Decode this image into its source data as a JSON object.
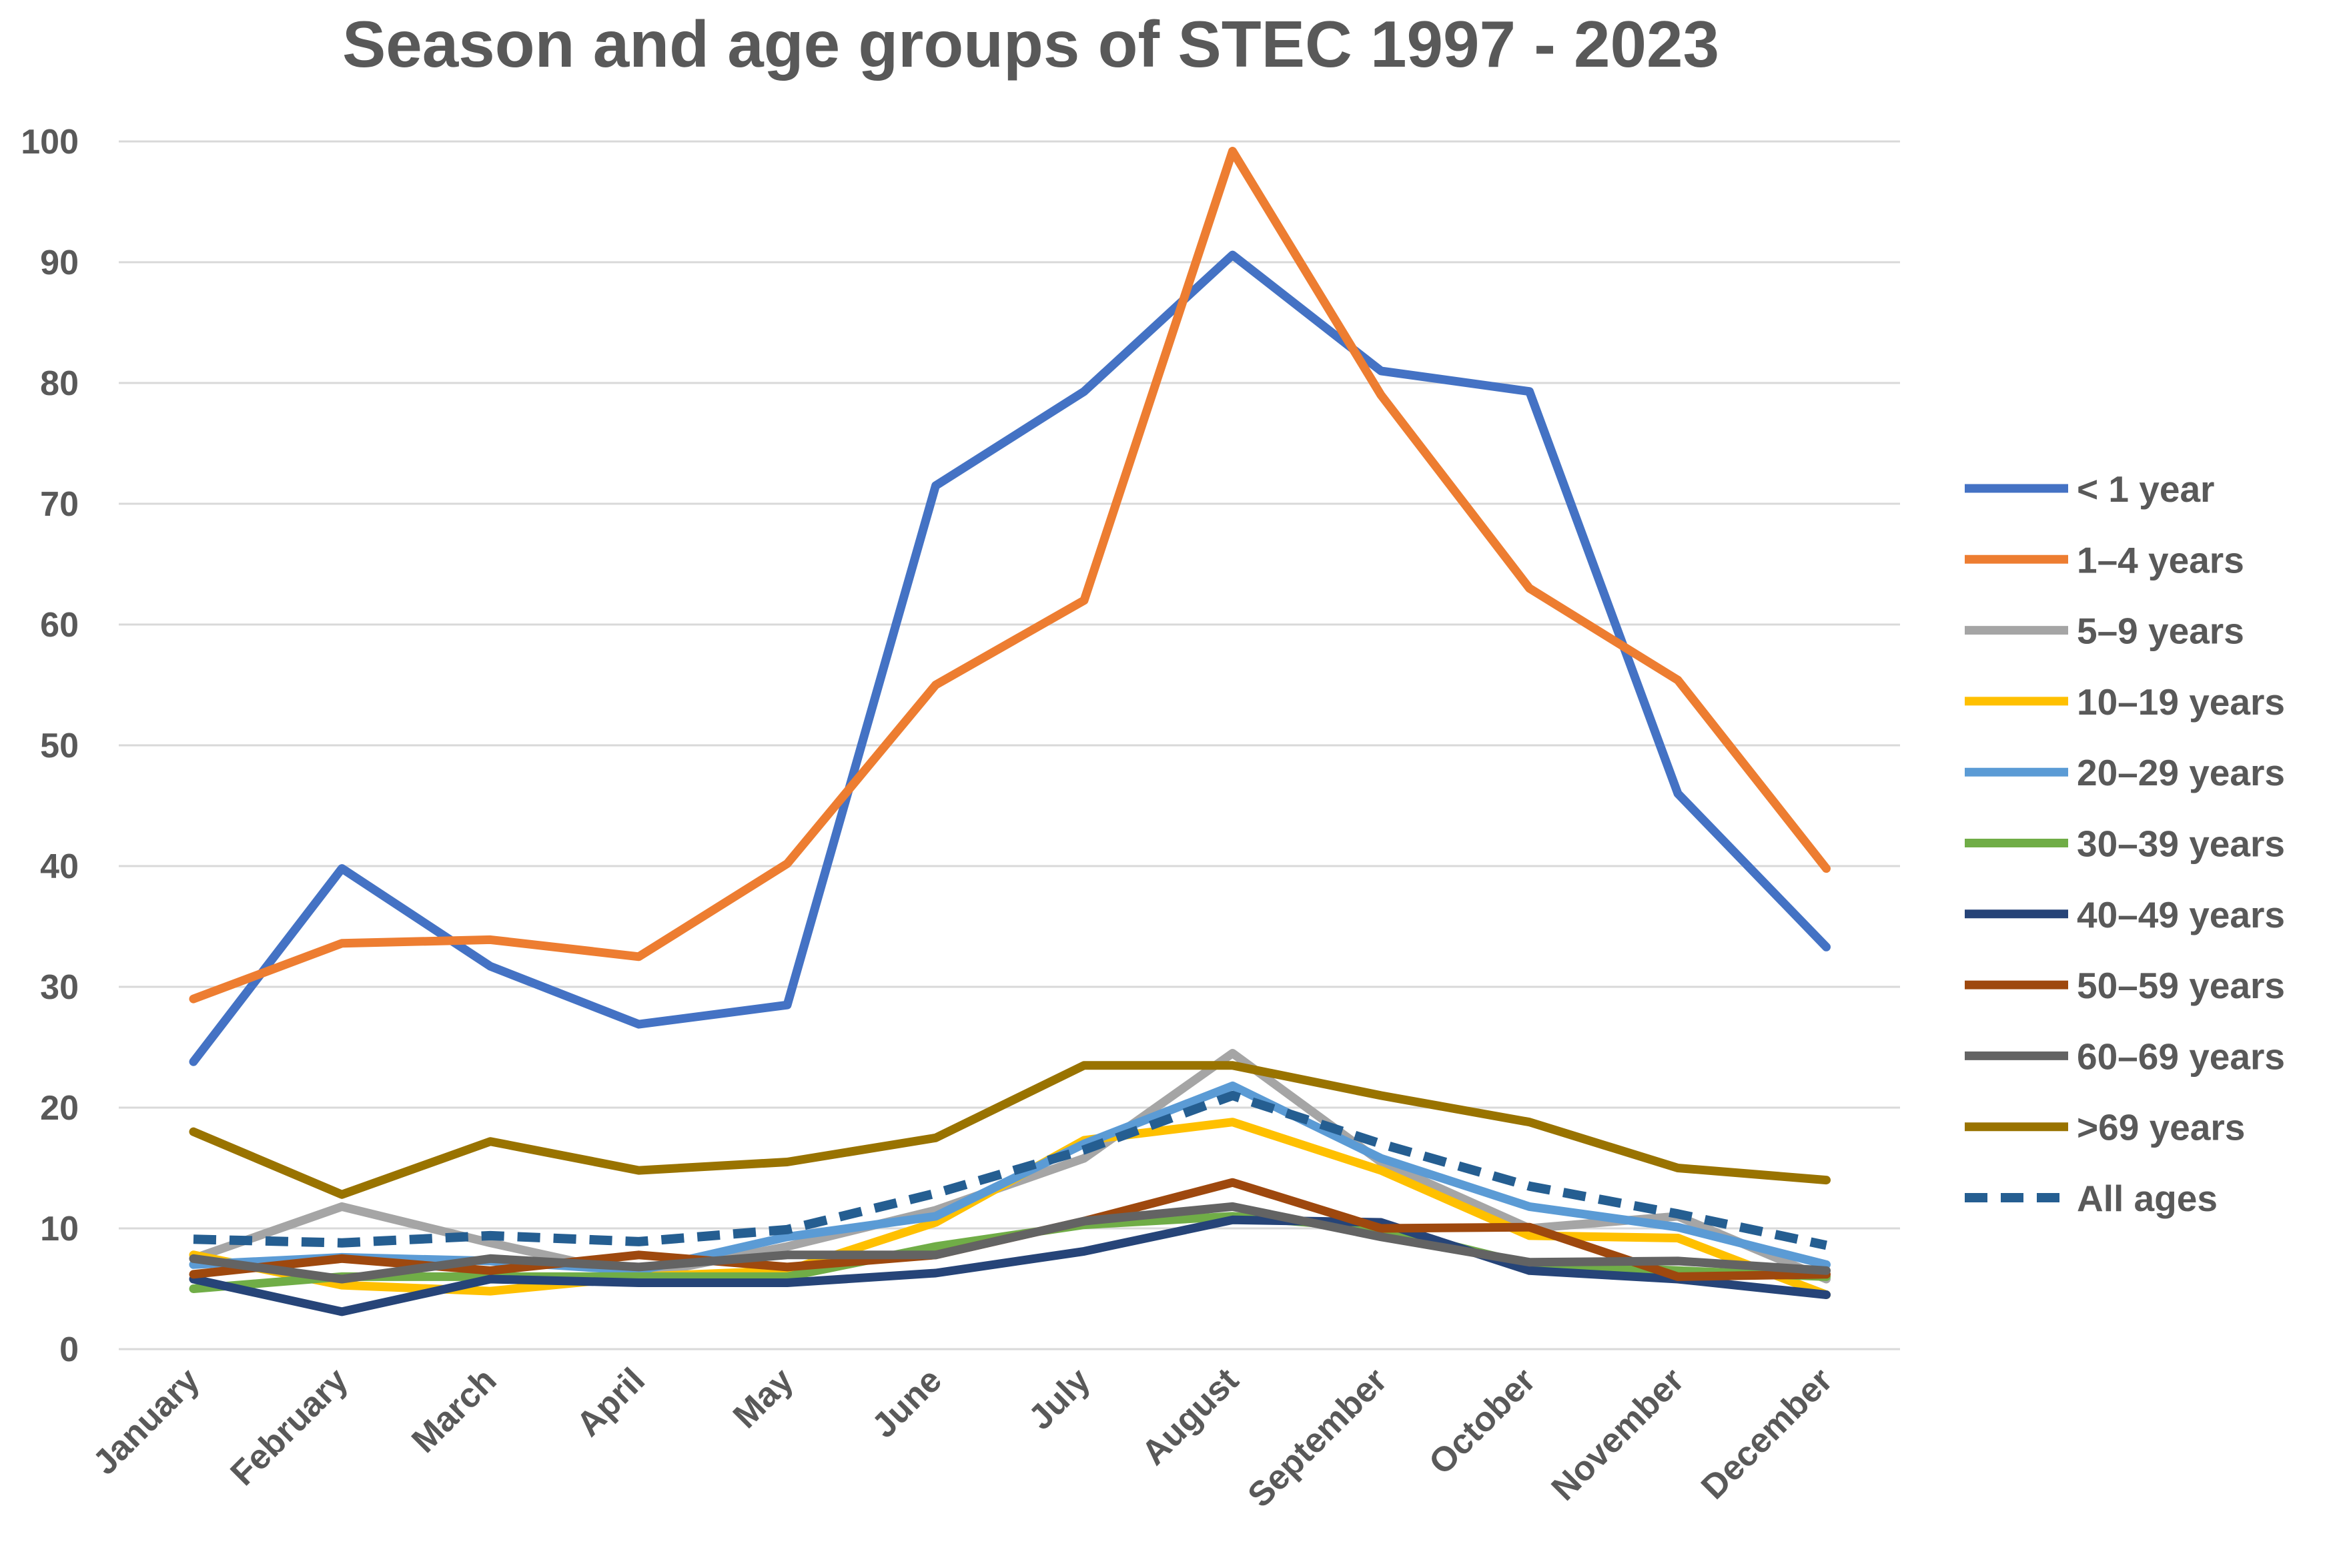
{
  "chart_data": {
    "type": "line",
    "title": "Season and age groups of STEC 1997 - 2023",
    "xlabel": "",
    "ylabel": "",
    "ylim": [
      0,
      100
    ],
    "yticks": [
      "0",
      "10",
      "20",
      "30",
      "40",
      "50",
      "60",
      "70",
      "80",
      "90",
      "100"
    ],
    "grid": true,
    "legend_position": "right",
    "categories": [
      "January",
      "February",
      "March",
      "April",
      "May",
      "June",
      "July",
      "August",
      "September",
      "October",
      "November",
      "December"
    ],
    "series": [
      {
        "name": "< 1 year",
        "color": "#4472C4",
        "dashed": false,
        "values": [
          23.8,
          39.8,
          31.7,
          26.9,
          28.5,
          71.5,
          79.3,
          90.6,
          81.0,
          79.3,
          46.0,
          33.3
        ]
      },
      {
        "name": "1–4 years",
        "color": "#ED7D31",
        "dashed": false,
        "values": [
          29.0,
          33.6,
          33.9,
          32.5,
          40.2,
          55.0,
          62.0,
          99.2,
          79.0,
          63.0,
          55.4,
          39.8
        ]
      },
      {
        "name": "5–9 years",
        "color": "#A5A5A5",
        "dashed": false,
        "values": [
          7.5,
          11.8,
          8.8,
          6.1,
          8.5,
          11.5,
          15.8,
          24.5,
          15.5,
          10.0,
          11.0,
          5.8
        ]
      },
      {
        "name": "10–19 years",
        "color": "#FFC000",
        "dashed": false,
        "values": [
          7.8,
          5.3,
          4.8,
          6.0,
          6.5,
          10.5,
          17.3,
          18.8,
          14.8,
          9.4,
          9.2,
          4.5
        ]
      },
      {
        "name": "20–29 years",
        "color": "#5B9BD5",
        "dashed": false,
        "values": [
          7.0,
          7.6,
          7.3,
          6.5,
          9.3,
          11.0,
          17.0,
          21.8,
          15.8,
          11.8,
          10.1,
          7.0
        ]
      },
      {
        "name": "30–39 years",
        "color": "#70AD47",
        "dashed": false,
        "values": [
          5.0,
          6.0,
          6.0,
          6.0,
          6.0,
          8.5,
          10.3,
          11.0,
          10.0,
          7.0,
          6.5,
          6.0
        ]
      },
      {
        "name": "40–49 years",
        "color": "#264478",
        "dashed": false,
        "values": [
          5.8,
          3.1,
          5.8,
          5.5,
          5.5,
          6.3,
          8.1,
          10.7,
          10.5,
          6.5,
          5.8,
          4.5
        ]
      },
      {
        "name": "50–59 years",
        "color": "#9E480E",
        "dashed": false,
        "values": [
          6.2,
          7.5,
          6.5,
          7.8,
          6.8,
          7.8,
          10.6,
          13.8,
          10.0,
          10.1,
          6.0,
          6.2
        ]
      },
      {
        "name": "60–69 years",
        "color": "#636363",
        "dashed": false,
        "values": [
          7.5,
          5.8,
          7.5,
          6.8,
          7.8,
          7.8,
          10.6,
          11.8,
          9.3,
          7.2,
          7.3,
          6.5
        ]
      },
      {
        "name": ">69 years",
        "color": "#997300",
        "dashed": false,
        "values": [
          18.0,
          12.8,
          17.2,
          14.8,
          15.5,
          17.5,
          23.5,
          23.5,
          21.0,
          18.8,
          15.0,
          14.0
        ]
      },
      {
        "name": "All ages",
        "color": "#255E91",
        "dashed": true,
        "values": [
          9.1,
          8.8,
          9.4,
          8.9,
          9.9,
          12.9,
          16.5,
          21.0,
          17.0,
          13.5,
          11.2,
          8.6
        ]
      }
    ]
  }
}
